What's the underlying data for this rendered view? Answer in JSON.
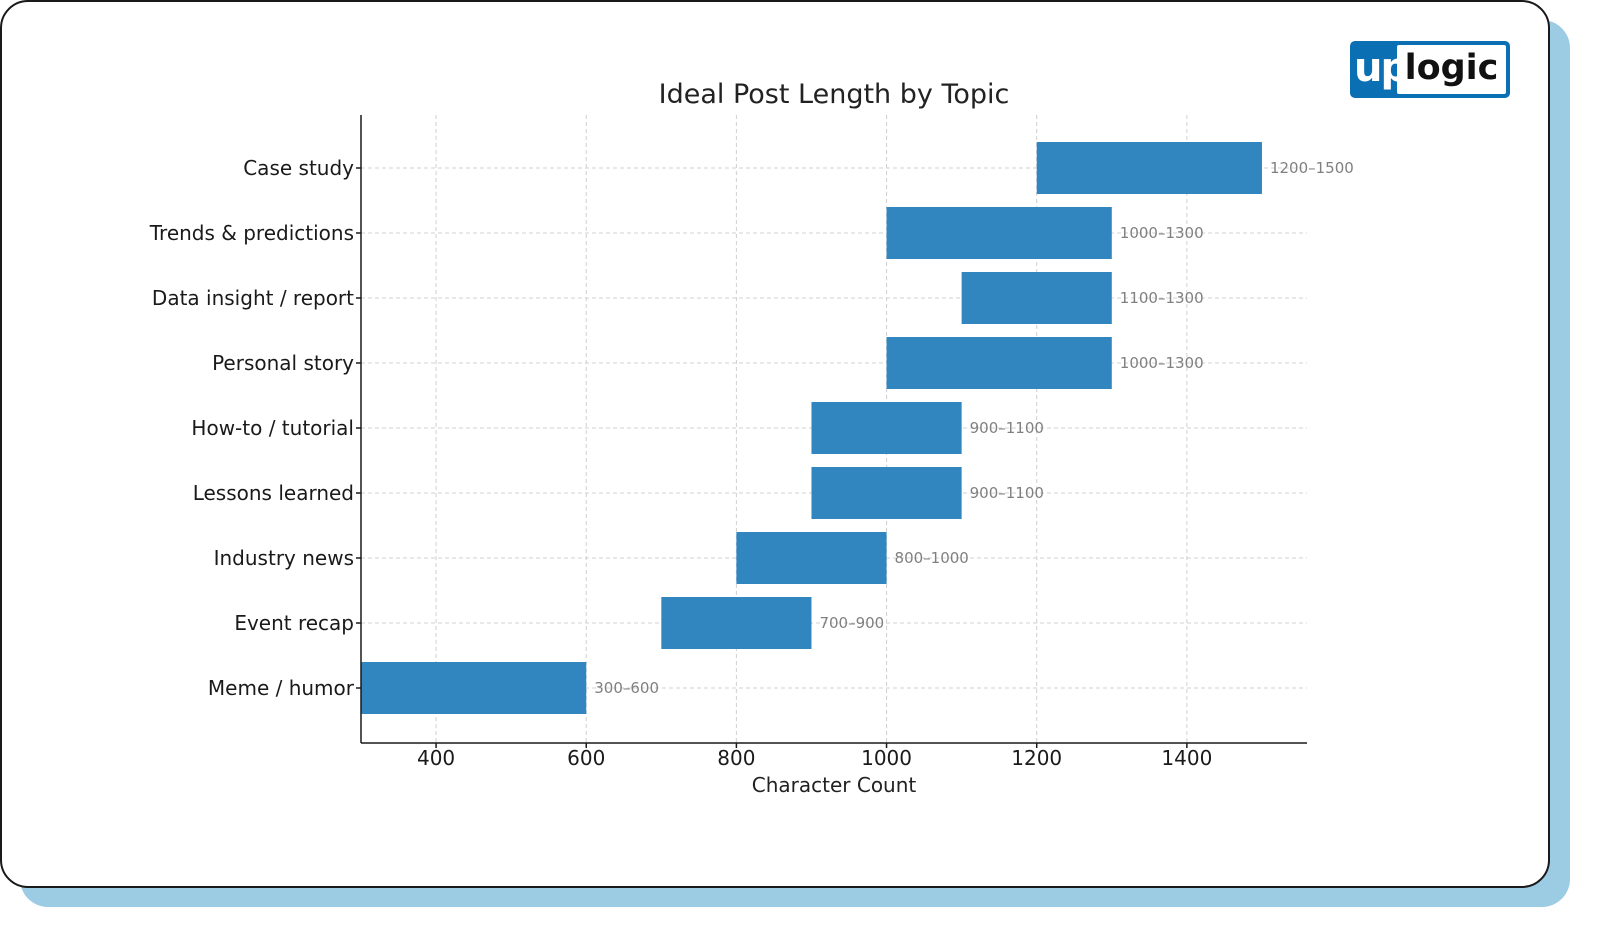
{
  "logo": {
    "brand_left": "up",
    "brand_right": "logic",
    "brand_color": "#0b6fb3"
  },
  "chart_data": {
    "type": "bar",
    "orientation": "horizontal-range",
    "title": "Ideal Post Length by Topic",
    "xlabel": "Character Count",
    "ylabel": "",
    "xlim": [
      300,
      1560
    ],
    "xticks": [
      400,
      600,
      800,
      1000,
      1200,
      1400
    ],
    "grid": true,
    "bar_color": "#3186c0",
    "categories": [
      "Case study",
      "Trends & predictions",
      "Data insight / report",
      "Personal story",
      "How-to / tutorial",
      "Lessons learned",
      "Industry news",
      "Event recap",
      "Meme / humor"
    ],
    "ranges": [
      [
        1200,
        1500
      ],
      [
        1000,
        1300
      ],
      [
        1100,
        1300
      ],
      [
        1000,
        1300
      ],
      [
        900,
        1100
      ],
      [
        900,
        1100
      ],
      [
        800,
        1000
      ],
      [
        700,
        900
      ],
      [
        300,
        600
      ]
    ],
    "data_labels": [
      "1200–1500",
      "1000–1300",
      "1100–1300",
      "1000–1300",
      "900–1100",
      "900–1100",
      "800–1000",
      "700–900",
      "300–600"
    ]
  }
}
